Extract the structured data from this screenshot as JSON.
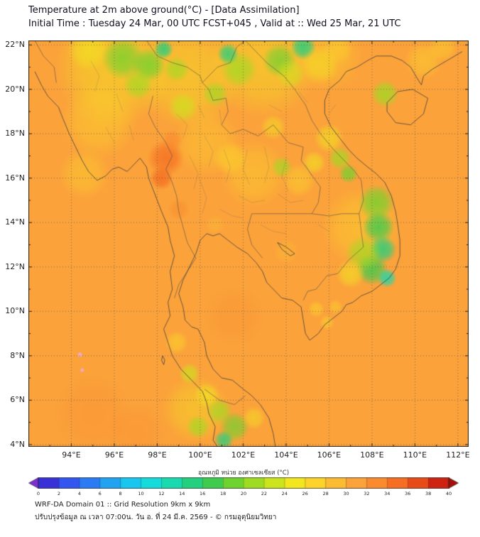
{
  "header": {
    "title_line1": "Temperature at 2m above ground(°C) - [Data Assimilation]",
    "title_line2": "Initial Time : Tuesday 24 Mar, 00 UTC FCST+045 , Valid at :: Wed 25 Mar, 21 UTC"
  },
  "map": {
    "axes": {
      "lat": {
        "degrees": [
          22,
          20,
          18,
          16,
          14,
          12,
          10,
          8,
          6,
          4
        ],
        "labels": [
          "22°N",
          "20°N",
          "18°N",
          "16°N",
          "14°N",
          "12°N",
          "10°N",
          "8°N",
          "6°N",
          "4°N"
        ]
      },
      "lon": {
        "degrees": [
          94,
          96,
          98,
          100,
          102,
          104,
          106,
          108,
          110,
          112
        ],
        "labels": [
          "94°E",
          "96°E",
          "98°E",
          "100°E",
          "102°E",
          "104°E",
          "106°E",
          "108°E",
          "110°E",
          "112°E"
        ]
      }
    }
  },
  "colorbar": {
    "title": "อุณหภูมิ หน่วย องศาเซลเซียส (°C)",
    "tick_labels": [
      "0",
      "2",
      "4",
      "6",
      "8",
      "10",
      "12",
      "14",
      "16",
      "18",
      "20",
      "22",
      "24",
      "26",
      "28",
      "30",
      "32",
      "34",
      "36",
      "38",
      "40"
    ],
    "under_color": "#7B2FD0",
    "over_color": "#A50F08",
    "segment_colors": [
      "#3A30D8",
      "#3355F0",
      "#2B7BF5",
      "#21A3F2",
      "#18C6EE",
      "#16DBDB",
      "#19D9AE",
      "#22D07F",
      "#3FCC4E",
      "#6FD32F",
      "#9EDC22",
      "#CCE41D",
      "#F2E71F",
      "#FBD32B",
      "#FBBB33",
      "#FBA23B",
      "#FA8A2E",
      "#F56E22",
      "#E84A18",
      "#CE2310"
    ]
  },
  "footer": {
    "line1": "WRF-DA Domain 01 :: Grid Resolution 9km x 9km",
    "line2": "ปรับปรุงข้อมูล ณ เวลา 07:00น. วัน อ. ที่ 24 มี.ค. 2569 - © กรมอุตุนิยมวิทยา"
  },
  "chart_data": {
    "type": "heatmap",
    "title": "Temperature at 2m above ground(°C) - [Data Assimilation]",
    "variable": "2m air temperature (°C)",
    "init_time": "Tuesday 24 Mar, 00 UTC",
    "forecast_hour": "FCST+045",
    "valid_time": "Wed 25 Mar, 21 UTC",
    "lon_range": [
      92.0,
      112.5
    ],
    "lat_range": [
      3.9,
      22.2
    ],
    "scale_min": 0,
    "scale_max": 40,
    "scale_step": 2,
    "base_temp_c": 31,
    "features": [
      [
        96.0,
        21.0,
        2.8,
        25,
        0.5
      ],
      [
        99.5,
        20.6,
        2.5,
        24,
        0.45
      ],
      [
        103.0,
        21.2,
        2.6,
        24,
        0.45
      ],
      [
        105.8,
        21.6,
        1.8,
        26,
        0.4
      ],
      [
        95.3,
        18.6,
        1.8,
        27,
        0.5
      ],
      [
        94.6,
        16.2,
        1.2,
        27,
        0.45
      ],
      [
        100.3,
        17.6,
        1.6,
        27,
        0.4
      ],
      [
        102.5,
        16.2,
        1.6,
        27,
        0.45
      ],
      [
        107.5,
        13.8,
        1.9,
        26,
        0.5
      ],
      [
        99.8,
        5.6,
        1.6,
        24,
        0.4
      ],
      [
        94.8,
        21.8,
        1.0,
        25,
        0.6
      ],
      [
        96.4,
        21.4,
        1.0,
        19,
        0.75
      ],
      [
        97.6,
        21.1,
        0.8,
        18,
        0.8
      ],
      [
        97.1,
        20.2,
        0.7,
        21,
        0.7
      ],
      [
        98.9,
        20.9,
        0.6,
        20,
        0.7
      ],
      [
        98.3,
        21.8,
        0.45,
        14,
        0.85
      ],
      [
        99.2,
        19.2,
        0.7,
        22,
        0.7
      ],
      [
        100.7,
        19.8,
        0.6,
        21,
        0.7
      ],
      [
        101.8,
        20.9,
        0.85,
        20,
        0.75
      ],
      [
        101.3,
        21.6,
        0.5,
        15,
        0.8
      ],
      [
        103.7,
        21.3,
        0.8,
        19,
        0.75
      ],
      [
        104.8,
        21.9,
        0.6,
        14,
        0.85
      ],
      [
        104.2,
        20.7,
        0.7,
        22,
        0.6
      ],
      [
        105.6,
        21.1,
        0.9,
        24,
        0.5
      ],
      [
        106.4,
        21.8,
        0.7,
        26,
        0.5
      ],
      [
        108.6,
        19.8,
        0.65,
        21,
        0.8
      ],
      [
        110.4,
        21.3,
        0.9,
        26,
        0.5
      ],
      [
        111.3,
        21.9,
        0.7,
        26,
        0.5
      ],
      [
        98.4,
        16.9,
        0.85,
        34,
        0.8
      ],
      [
        98.2,
        16.0,
        0.55,
        35,
        0.85
      ],
      [
        98.7,
        17.7,
        0.5,
        33,
        0.7
      ],
      [
        99.0,
        14.6,
        0.5,
        33,
        0.55
      ],
      [
        101.4,
        16.9,
        0.8,
        26,
        0.6
      ],
      [
        103.8,
        16.5,
        0.5,
        21,
        0.7
      ],
      [
        104.6,
        15.9,
        0.8,
        26,
        0.55
      ],
      [
        105.3,
        16.7,
        0.55,
        24,
        0.6
      ],
      [
        103.4,
        18.3,
        0.6,
        25,
        0.5
      ],
      [
        106.0,
        17.8,
        0.7,
        24,
        0.6
      ],
      [
        106.5,
        16.9,
        0.55,
        21,
        0.75
      ],
      [
        106.9,
        16.2,
        0.45,
        19,
        0.8
      ],
      [
        108.2,
        14.9,
        0.85,
        19,
        0.8
      ],
      [
        108.3,
        13.8,
        0.75,
        16,
        0.85
      ],
      [
        108.5,
        12.8,
        0.65,
        14,
        0.85
      ],
      [
        108.0,
        11.9,
        0.75,
        17,
        0.85
      ],
      [
        108.7,
        11.5,
        0.45,
        13,
        0.85
      ],
      [
        107.6,
        12.6,
        0.85,
        21,
        0.7
      ],
      [
        107.0,
        11.7,
        0.7,
        24,
        0.6
      ],
      [
        104.0,
        12.7,
        0.6,
        28,
        0.5
      ],
      [
        100.7,
        13.9,
        0.45,
        28,
        0.5
      ],
      [
        98.9,
        8.6,
        0.55,
        26,
        0.6
      ],
      [
        99.5,
        7.2,
        0.5,
        23,
        0.7
      ],
      [
        100.3,
        6.2,
        0.6,
        24,
        0.6
      ],
      [
        100.9,
        5.5,
        0.6,
        21,
        0.7
      ],
      [
        101.6,
        4.8,
        0.7,
        19,
        0.75
      ],
      [
        101.1,
        4.2,
        0.45,
        15,
        0.8
      ],
      [
        99.9,
        4.8,
        0.55,
        20,
        0.7
      ],
      [
        102.5,
        5.2,
        0.55,
        24,
        0.5
      ],
      [
        105.4,
        10.1,
        0.4,
        26,
        0.6
      ],
      [
        105.9,
        9.5,
        0.35,
        26,
        0.6
      ],
      [
        106.3,
        10.2,
        0.35,
        27,
        0.5
      ],
      [
        94.4,
        8.05,
        0.13,
        "#EDAFE3",
        0.95
      ],
      [
        94.5,
        7.35,
        0.11,
        "#EDAFE3",
        0.9
      ],
      [
        95.0,
        5.4,
        1.8,
        32,
        0.3
      ],
      [
        97.0,
        4.5,
        1.4,
        32,
        0.3
      ],
      [
        101.6,
        9.8,
        1.4,
        32,
        0.25
      ]
    ]
  }
}
